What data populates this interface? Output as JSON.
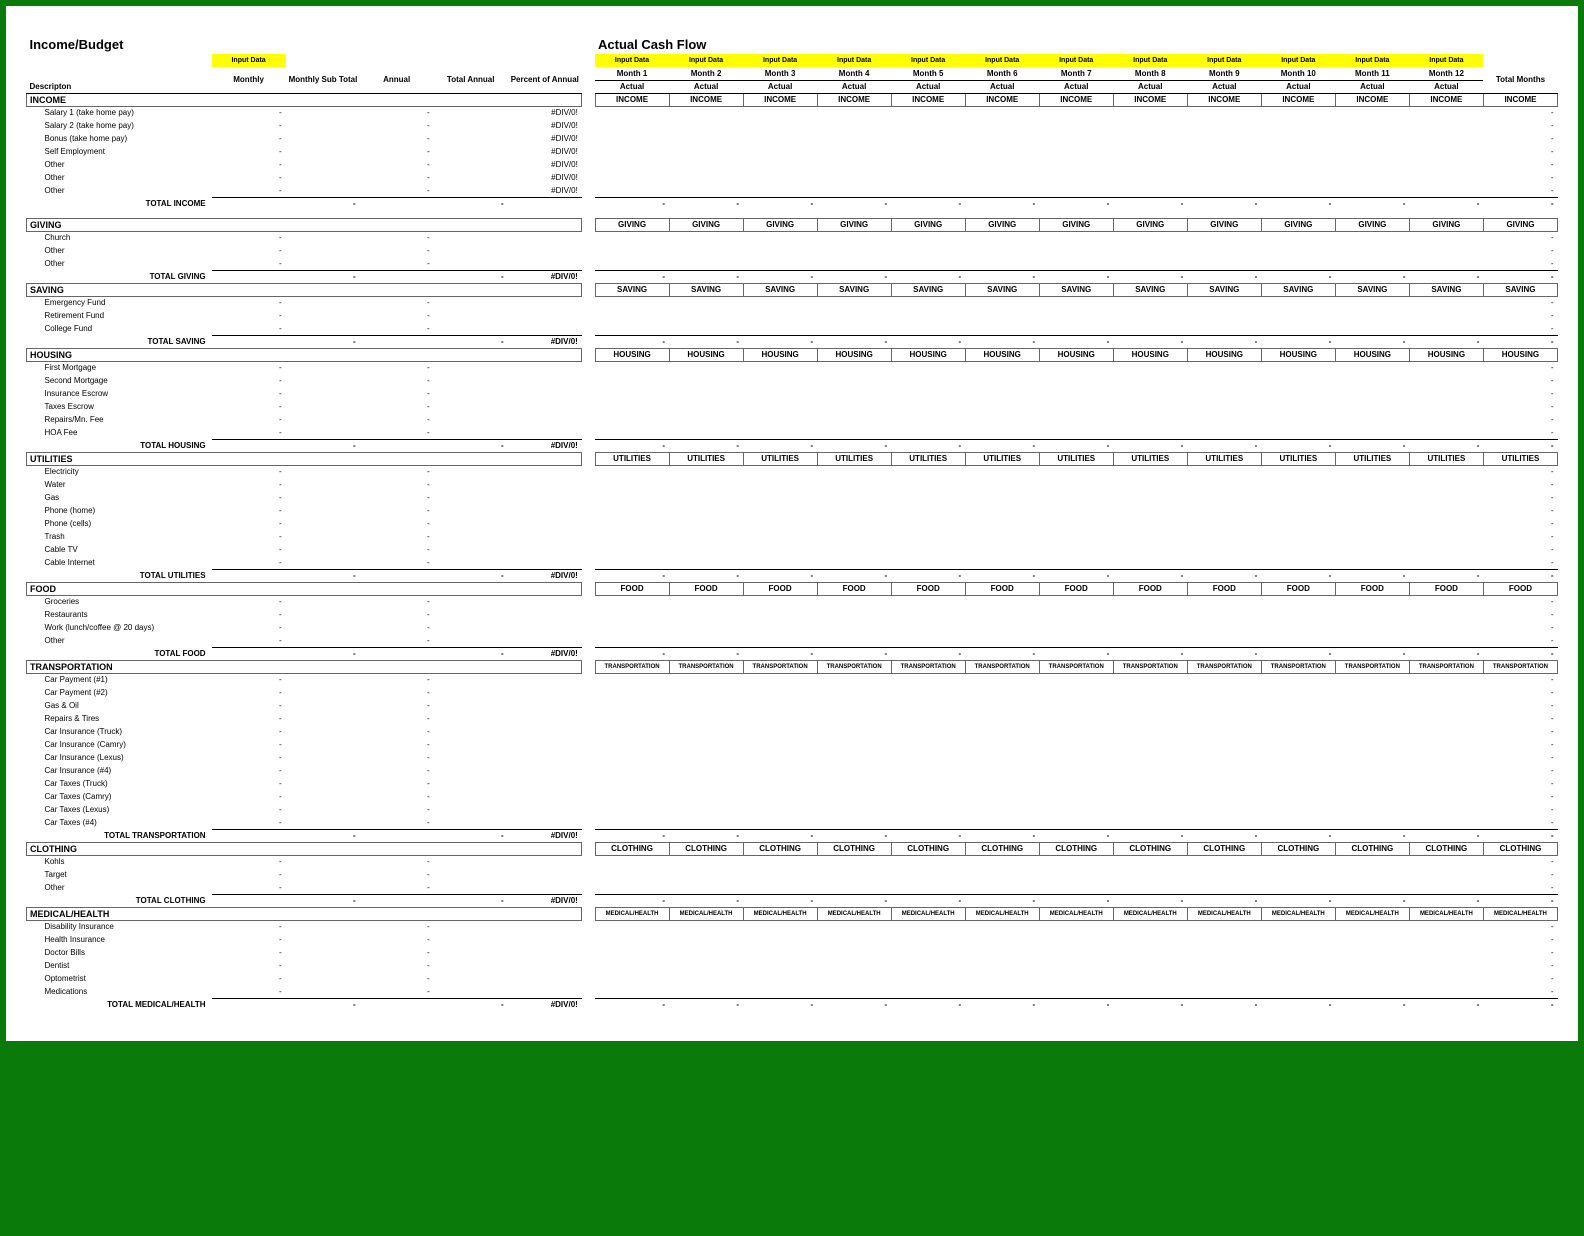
{
  "titles": {
    "left": "Income/Budget",
    "right": "Actual Cash Flow"
  },
  "inputDataLabel": "Input Data",
  "budgetHeaders": {
    "desc": "Descripton",
    "monthly": "Monthly",
    "monthlySub": "Monthly Sub Total",
    "annual": "Annual",
    "totalAnnual": "Total Annual",
    "pctAnnual": "Percent of Annual"
  },
  "monthHeaders": [
    "Month 1",
    "Month 2",
    "Month 3",
    "Month 4",
    "Month 5",
    "Month 6",
    "Month 7",
    "Month 8",
    "Month 9",
    "Month 10",
    "Month 11",
    "Month 12"
  ],
  "actualLabel": "Actual",
  "totalMonths": "Total Months",
  "dash": "-",
  "err": "#DIV/0!",
  "sections": [
    {
      "name": "INCOME",
      "items": [
        "Salary 1 (take home pay)",
        "Salary 2 (take home pay)",
        "Bonus (take home pay)",
        "Self Employment",
        "Other",
        "Other",
        "Other"
      ],
      "totalLabel": "TOTAL INCOME",
      "showPctErr": true,
      "totalShowErr": false
    },
    {
      "name": "GIVING",
      "items": [
        "Church",
        "Other",
        "Other"
      ],
      "totalLabel": "TOTAL GIVING",
      "showPctErr": false,
      "totalShowErr": true
    },
    {
      "name": "SAVING",
      "items": [
        "Emergency Fund",
        "Retirement Fund",
        "College Fund"
      ],
      "totalLabel": "TOTAL SAVING",
      "showPctErr": false,
      "totalShowErr": true
    },
    {
      "name": "HOUSING",
      "items": [
        "First Mortgage",
        "Second Mortgage",
        "Insurance Escrow",
        "Taxes Escrow",
        "Repairs/Mn. Fee",
        "HOA Fee"
      ],
      "totalLabel": "TOTAL HOUSING",
      "showPctErr": false,
      "totalShowErr": true
    },
    {
      "name": "UTILITIES",
      "items": [
        "Electricity",
        "Water",
        "Gas",
        "Phone (home)",
        "Phone (cells)",
        "Trash",
        "Cable TV",
        "Cable Internet"
      ],
      "totalLabel": "TOTAL UTILITIES",
      "showPctErr": false,
      "totalShowErr": true
    },
    {
      "name": "FOOD",
      "items": [
        "Groceries",
        "Restaurants",
        "Work (lunch/coffee @ 20 days)",
        "Other"
      ],
      "totalLabel": "TOTAL FOOD",
      "showPctErr": false,
      "totalShowErr": true
    },
    {
      "name": "TRANSPORTATION",
      "items": [
        "Car Payment (#1)",
        "Car Payment (#2)",
        "Gas & Oil",
        "Repairs & Tires",
        "Car Insurance (Truck)",
        "Car Insurance (Camry)",
        "Car Insurance (Lexus)",
        "Car Insurance (#4)",
        "Car Taxes (Truck)",
        "Car Taxes (Camry)",
        "Car Taxes (Lexus)",
        "Car Taxes (#4)"
      ],
      "totalLabel": "TOTAL TRANSPORTATION",
      "showPctErr": false,
      "totalShowErr": true
    },
    {
      "name": "CLOTHING",
      "items": [
        "Kohls",
        "Target",
        "Other"
      ],
      "totalLabel": "TOTAL CLOTHING",
      "showPctErr": false,
      "totalShowErr": true
    },
    {
      "name": "MEDICAL/HEALTH",
      "items": [
        "Disability Insurance",
        "Health Insurance",
        "Doctor Bills",
        "Dentist",
        "Optometrist",
        "Medications"
      ],
      "totalLabel": "TOTAL MEDICAL/HEALTH",
      "showPctErr": false,
      "totalShowErr": true
    }
  ],
  "colors": {
    "pageBorder": "#0a7a0a",
    "highlight": "#ffff00",
    "border": "#666666",
    "text": "#000000"
  }
}
